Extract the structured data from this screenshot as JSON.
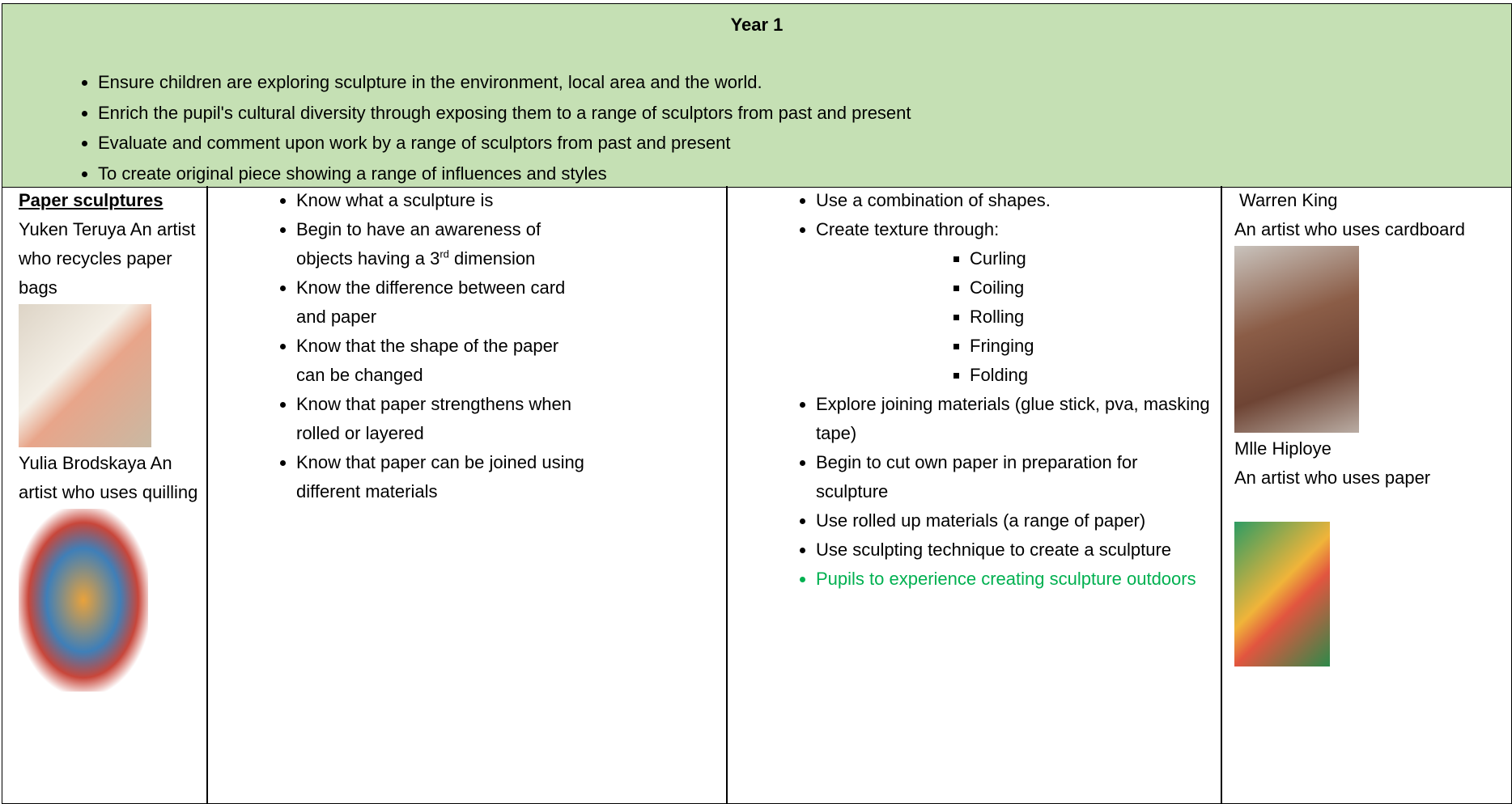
{
  "header": {
    "title": "Year 1",
    "aims": [
      "Ensure children are exploring sculpture in the environment, local area and the world.",
      "Enrich the pupil's cultural diversity through exposing them to a range of sculptors from past and present",
      "Evaluate and comment upon work by a range of sculptors from past and present",
      "To create original piece showing a range of influences and styles"
    ]
  },
  "topic": {
    "heading": "Paper sculptures",
    "artists": [
      "Yuken Teruya An artist who recycles paper bags",
      "Yulia Brodskaya An artist who uses quilling"
    ]
  },
  "knowledge": {
    "items": [
      "Know what a sculpture is",
      {
        "before": "Begin to have an awareness of objects having a 3",
        "sup": "rd",
        "after": " dimension"
      },
      "Know the difference between card and paper",
      "Know that the shape of the paper can be changed",
      "Know that paper strengthens when rolled or layered",
      "Know that paper can be joined using different materials"
    ]
  },
  "skills": {
    "items": [
      "Use a combination of shapes.",
      "Create texture through:",
      "Explore joining materials (glue stick, pva, masking tape)",
      "Begin to cut own paper in preparation for sculpture",
      "Use rolled up materials (a range of paper)",
      "Use sculpting technique to create a sculpture",
      "Pupils to experience creating sculpture outdoors"
    ],
    "texture_methods": [
      "Curling",
      "Coiling",
      "Rolling",
      "Fringing",
      "Folding"
    ]
  },
  "artists": [
    {
      "name": "Warren King",
      "description": "An artist who uses cardboard"
    },
    {
      "name": "Mlle Hiploye",
      "description": "An artist who uses paper"
    }
  ]
}
